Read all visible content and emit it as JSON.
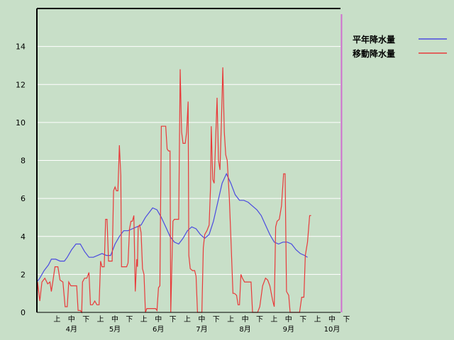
{
  "chart_data": {
    "type": "line",
    "title": "",
    "xlabel": "",
    "ylabel": "",
    "ylim": [
      0,
      16
    ],
    "yticks": [
      0,
      2,
      4,
      6,
      8,
      10,
      12,
      14
    ],
    "grid": true,
    "legend_placement": "top-right",
    "x_labels": [
      {
        "x": 1,
        "sub": "上",
        "month": ""
      },
      {
        "x": 2,
        "sub": "中",
        "month": "4月"
      },
      {
        "x": 3,
        "sub": "下",
        "month": ""
      },
      {
        "x": 4,
        "sub": "上",
        "month": ""
      },
      {
        "x": 5,
        "sub": "中",
        "month": "5月"
      },
      {
        "x": 6,
        "sub": "下",
        "month": ""
      },
      {
        "x": 7,
        "sub": "上",
        "month": ""
      },
      {
        "x": 8,
        "sub": "中",
        "month": "6月"
      },
      {
        "x": 9,
        "sub": "下",
        "month": ""
      },
      {
        "x": 10,
        "sub": "上",
        "month": ""
      },
      {
        "x": 11,
        "sub": "中",
        "month": "7月"
      },
      {
        "x": 12,
        "sub": "下",
        "month": ""
      },
      {
        "x": 13,
        "sub": "上",
        "month": ""
      },
      {
        "x": 14,
        "sub": "中",
        "month": "8月"
      },
      {
        "x": 15,
        "sub": "下",
        "month": ""
      },
      {
        "x": 16,
        "sub": "上",
        "month": ""
      },
      {
        "x": 17,
        "sub": "中",
        "month": "9月"
      },
      {
        "x": 18,
        "sub": "下",
        "month": ""
      },
      {
        "x": 19,
        "sub": "上",
        "month": ""
      },
      {
        "x": 20,
        "sub": "中",
        "month": "10月"
      },
      {
        "x": 21,
        "sub": "下",
        "month": ""
      }
    ],
    "xlim": [
      0,
      21.5
    ],
    "marker_x": 21.05,
    "series": [
      {
        "name": "平年降水量",
        "color": "#4a4ae0",
        "points": [
          [
            0,
            1.6
          ],
          [
            0.2,
            1.8
          ],
          [
            0.5,
            2.2
          ],
          [
            0.8,
            2.5
          ],
          [
            1.0,
            2.8
          ],
          [
            1.3,
            2.8
          ],
          [
            1.6,
            2.7
          ],
          [
            1.9,
            2.7
          ],
          [
            2.1,
            2.9
          ],
          [
            2.4,
            3.3
          ],
          [
            2.7,
            3.6
          ],
          [
            3.0,
            3.6
          ],
          [
            3.3,
            3.2
          ],
          [
            3.6,
            2.9
          ],
          [
            3.9,
            2.9
          ],
          [
            4.2,
            3.0
          ],
          [
            4.5,
            3.1
          ],
          [
            4.8,
            3.0
          ],
          [
            5.1,
            3.0
          ],
          [
            5.4,
            3.6
          ],
          [
            5.7,
            4.0
          ],
          [
            6.0,
            4.3
          ],
          [
            6.3,
            4.3
          ],
          [
            6.6,
            4.4
          ],
          [
            6.9,
            4.5
          ],
          [
            7.2,
            4.6
          ],
          [
            7.5,
            5.0
          ],
          [
            7.8,
            5.3
          ],
          [
            8.0,
            5.5
          ],
          [
            8.3,
            5.4
          ],
          [
            8.6,
            5.0
          ],
          [
            8.9,
            4.5
          ],
          [
            9.2,
            4.0
          ],
          [
            9.5,
            3.7
          ],
          [
            9.8,
            3.6
          ],
          [
            10.1,
            3.9
          ],
          [
            10.4,
            4.3
          ],
          [
            10.7,
            4.5
          ],
          [
            11.0,
            4.4
          ],
          [
            11.3,
            4.1
          ],
          [
            11.6,
            3.9
          ],
          [
            11.9,
            4.1
          ],
          [
            12.2,
            4.8
          ],
          [
            12.5,
            5.8
          ],
          [
            12.8,
            6.8
          ],
          [
            13.1,
            7.3
          ],
          [
            13.4,
            6.8
          ],
          [
            13.7,
            6.2
          ],
          [
            14.0,
            5.9
          ],
          [
            14.3,
            5.9
          ],
          [
            14.6,
            5.8
          ],
          [
            14.9,
            5.6
          ],
          [
            15.2,
            5.4
          ],
          [
            15.5,
            5.1
          ],
          [
            15.8,
            4.6
          ],
          [
            16.1,
            4.1
          ],
          [
            16.4,
            3.7
          ],
          [
            16.7,
            3.6
          ],
          [
            17.0,
            3.7
          ],
          [
            17.3,
            3.7
          ],
          [
            17.6,
            3.6
          ],
          [
            17.9,
            3.3
          ],
          [
            18.2,
            3.1
          ],
          [
            18.5,
            3.0
          ],
          [
            18.7,
            2.9
          ]
        ]
      },
      {
        "name": "移動降水量",
        "color": "#e83a3a",
        "points": [
          [
            0,
            0
          ],
          [
            0.05,
            1.6
          ],
          [
            0.2,
            0.6
          ],
          [
            0.35,
            1.6
          ],
          [
            0.55,
            1.8
          ],
          [
            0.75,
            1.5
          ],
          [
            0.9,
            1.6
          ],
          [
            1.0,
            1.1
          ],
          [
            1.1,
            1.6
          ],
          [
            1.25,
            2.4
          ],
          [
            1.45,
            2.4
          ],
          [
            1.6,
            1.7
          ],
          [
            1.8,
            1.6
          ],
          [
            1.95,
            0.3
          ],
          [
            2.1,
            0.3
          ],
          [
            2.2,
            1.6
          ],
          [
            2.35,
            1.4
          ],
          [
            2.55,
            1.4
          ],
          [
            2.75,
            1.4
          ],
          [
            2.85,
            0.1
          ],
          [
            3.0,
            0.1
          ],
          [
            3.1,
            0
          ],
          [
            3.15,
            1.6
          ],
          [
            3.3,
            1.8
          ],
          [
            3.45,
            1.8
          ],
          [
            3.6,
            2.1
          ],
          [
            3.7,
            0.4
          ],
          [
            3.85,
            0.4
          ],
          [
            4.0,
            0.6
          ],
          [
            4.15,
            0.4
          ],
          [
            4.3,
            0.4
          ],
          [
            4.4,
            2.7
          ],
          [
            4.5,
            2.4
          ],
          [
            4.65,
            2.4
          ],
          [
            4.75,
            4.9
          ],
          [
            4.85,
            4.9
          ],
          [
            4.95,
            2.7
          ],
          [
            5.1,
            2.7
          ],
          [
            5.2,
            2.7
          ],
          [
            5.3,
            6.4
          ],
          [
            5.4,
            6.6
          ],
          [
            5.5,
            6.4
          ],
          [
            5.6,
            6.4
          ],
          [
            5.7,
            8.8
          ],
          [
            5.8,
            7.2
          ],
          [
            5.85,
            2.4
          ],
          [
            6.0,
            2.4
          ],
          [
            6.2,
            2.4
          ],
          [
            6.3,
            2.6
          ],
          [
            6.4,
            4.4
          ],
          [
            6.5,
            4.8
          ],
          [
            6.6,
            4.8
          ],
          [
            6.7,
            5.1
          ],
          [
            6.8,
            1.1
          ],
          [
            6.9,
            2.8
          ],
          [
            6.95,
            2.4
          ],
          [
            7.0,
            4.5
          ],
          [
            7.1,
            4.6
          ],
          [
            7.2,
            4.2
          ],
          [
            7.3,
            2.3
          ],
          [
            7.4,
            2.0
          ],
          [
            7.5,
            0
          ],
          [
            7.6,
            0.2
          ],
          [
            7.8,
            0.2
          ],
          [
            8.0,
            0.2
          ],
          [
            8.2,
            0.2
          ],
          [
            8.3,
            0.1
          ],
          [
            8.4,
            1.3
          ],
          [
            8.5,
            1.4
          ],
          [
            8.6,
            9.8
          ],
          [
            8.75,
            9.8
          ],
          [
            8.9,
            9.8
          ],
          [
            9.0,
            8.6
          ],
          [
            9.1,
            8.5
          ],
          [
            9.2,
            8.5
          ],
          [
            9.25,
            0
          ],
          [
            9.4,
            4.8
          ],
          [
            9.5,
            4.9
          ],
          [
            9.7,
            4.9
          ],
          [
            9.8,
            4.9
          ],
          [
            9.9,
            12.8
          ],
          [
            10.0,
            9.5
          ],
          [
            10.1,
            8.9
          ],
          [
            10.25,
            8.9
          ],
          [
            10.35,
            9.5
          ],
          [
            10.45,
            11.1
          ],
          [
            10.5,
            3.0
          ],
          [
            10.6,
            2.3
          ],
          [
            10.75,
            2.2
          ],
          [
            10.9,
            2.2
          ],
          [
            11.0,
            1.9
          ],
          [
            11.1,
            0
          ],
          [
            11.3,
            0
          ],
          [
            11.4,
            0
          ],
          [
            11.5,
            3.4
          ],
          [
            11.6,
            4.1
          ],
          [
            11.75,
            4.3
          ],
          [
            11.9,
            4.6
          ],
          [
            12.0,
            6.6
          ],
          [
            12.05,
            9.8
          ],
          [
            12.15,
            7.0
          ],
          [
            12.25,
            6.8
          ],
          [
            12.35,
            9.0
          ],
          [
            12.45,
            11.3
          ],
          [
            12.55,
            8.0
          ],
          [
            12.65,
            7.5
          ],
          [
            12.75,
            10.0
          ],
          [
            12.85,
            12.9
          ],
          [
            12.95,
            9.5
          ],
          [
            13.05,
            8.3
          ],
          [
            13.15,
            8.0
          ],
          [
            13.3,
            6.0
          ],
          [
            13.4,
            4.0
          ],
          [
            13.55,
            1.0
          ],
          [
            13.65,
            1.0
          ],
          [
            13.8,
            0.9
          ],
          [
            13.9,
            0.4
          ],
          [
            14.0,
            0.4
          ],
          [
            14.1,
            2.0
          ],
          [
            14.2,
            1.8
          ],
          [
            14.35,
            1.6
          ],
          [
            14.6,
            1.6
          ],
          [
            14.8,
            1.6
          ],
          [
            14.9,
            0
          ],
          [
            15.1,
            0
          ],
          [
            15.25,
            0
          ],
          [
            15.4,
            0.3
          ],
          [
            15.6,
            1.4
          ],
          [
            15.8,
            1.8
          ],
          [
            15.95,
            1.7
          ],
          [
            16.1,
            1.4
          ],
          [
            16.3,
            0.6
          ],
          [
            16.4,
            0.3
          ],
          [
            16.5,
            4.5
          ],
          [
            16.6,
            4.8
          ],
          [
            16.75,
            4.9
          ],
          [
            16.9,
            5.6
          ],
          [
            17.05,
            7.3
          ],
          [
            17.15,
            7.3
          ],
          [
            17.25,
            1.1
          ],
          [
            17.4,
            0.9
          ],
          [
            17.5,
            0
          ],
          [
            17.7,
            0
          ],
          [
            17.85,
            0
          ],
          [
            18.0,
            0
          ],
          [
            18.15,
            0
          ],
          [
            18.3,
            0.8
          ],
          [
            18.45,
            0.8
          ],
          [
            18.55,
            3.0
          ],
          [
            18.7,
            3.7
          ],
          [
            18.85,
            5.1
          ],
          [
            18.95,
            5.1
          ]
        ]
      }
    ]
  }
}
